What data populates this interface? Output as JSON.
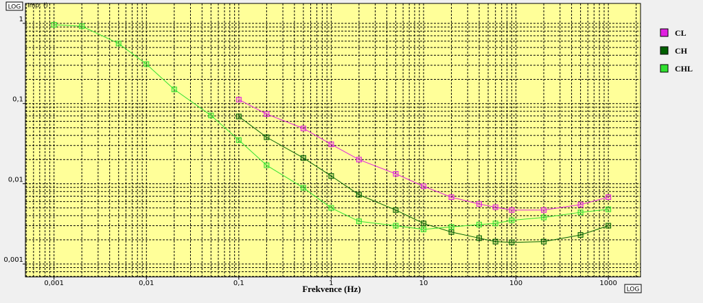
{
  "chart_data": {
    "type": "line",
    "y_label": "Imp. ()",
    "x_label": "Frekvence (Hz)",
    "x_scale_label": "LOG",
    "y_scale_label": "LOG",
    "log_x": true,
    "log_y": true,
    "grid": true,
    "minor_grid": true,
    "legend": "right",
    "xlim": [
      0.00049,
      2230
    ],
    "ylim": [
      0.00069,
      1.77
    ],
    "xticks": [
      {
        "value": 0.001,
        "label": "0,001"
      },
      {
        "value": 0.01,
        "label": "0,01"
      },
      {
        "value": 0.1,
        "label": "0,1"
      },
      1,
      10,
      100,
      1000
    ],
    "yticks": [
      {
        "value": 0.001,
        "label": "0,001"
      },
      {
        "value": 0.01,
        "label": "0,01"
      },
      {
        "value": 0.1,
        "label": "0,1"
      },
      1
    ],
    "series": [
      {
        "name": "CL",
        "color": "#e020e0",
        "x": [
          0.1,
          0.2,
          0.5,
          1,
          2,
          5,
          10,
          20,
          40,
          60,
          90,
          200,
          500,
          1000
        ],
        "values": [
          0.112,
          0.074,
          0.049,
          0.031,
          0.02,
          0.0133,
          0.0093,
          0.0068,
          0.0056,
          0.0051,
          0.0047,
          0.0047,
          0.0055,
          0.0068
        ]
      },
      {
        "name": "CH",
        "color": "#006000",
        "x": [
          0.1,
          0.2,
          0.5,
          1,
          2,
          5,
          10,
          20,
          40,
          60,
          90,
          200,
          500,
          1000
        ],
        "values": [
          0.069,
          0.038,
          0.021,
          0.0125,
          0.0073,
          0.0047,
          0.0032,
          0.0025,
          0.0021,
          0.0019,
          0.00186,
          0.0019,
          0.0023,
          0.003
        ]
      },
      {
        "name": "CHL",
        "color": "#30e030",
        "x": [
          0.001,
          0.002,
          0.005,
          0.01,
          0.02,
          0.05,
          0.1,
          0.2,
          0.5,
          1,
          2,
          5,
          10,
          20,
          40,
          60,
          90,
          200,
          500,
          1000
        ],
        "values": [
          0.96,
          0.92,
          0.56,
          0.31,
          0.15,
          0.071,
          0.035,
          0.017,
          0.0089,
          0.005,
          0.0034,
          0.003,
          0.0027,
          0.0029,
          0.0031,
          0.0032,
          0.0035,
          0.0038,
          0.0044,
          0.0048
        ]
      }
    ]
  }
}
